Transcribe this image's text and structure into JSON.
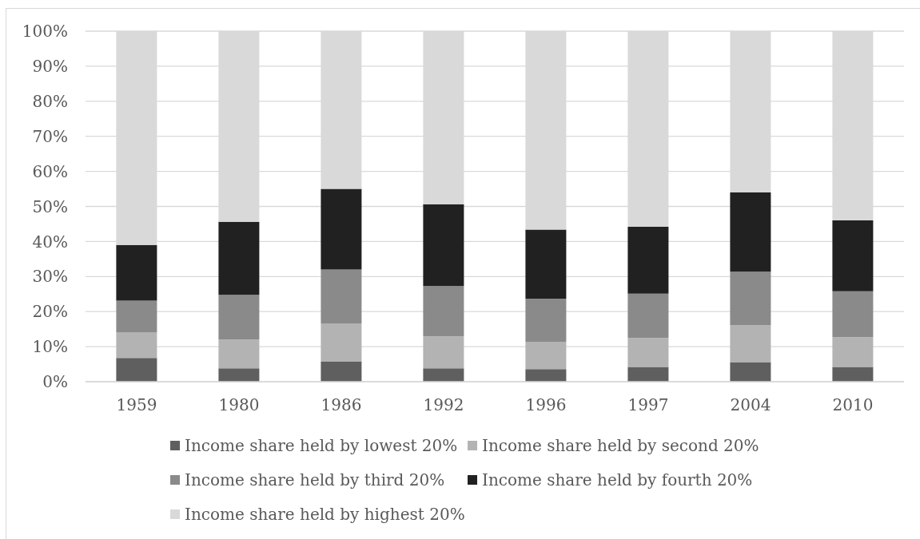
{
  "chart_data": {
    "type": "bar",
    "stacked": true,
    "categories": [
      "1959",
      "1980",
      "1986",
      "1992",
      "1996",
      "1997",
      "2004",
      "2010"
    ],
    "series": [
      {
        "name": "Income share held by lowest 20%",
        "color": "#5f5f5f",
        "values": [
          6.8,
          3.8,
          5.8,
          3.8,
          3.6,
          4.2,
          5.6,
          4.2
        ]
      },
      {
        "name": "Income share held by second 20%",
        "color": "#b3b3b3",
        "values": [
          7.2,
          8.2,
          10.7,
          9.1,
          7.8,
          8.3,
          10.6,
          8.5
        ]
      },
      {
        "name": "Income share held by third 20%",
        "color": "#8a8a8a",
        "values": [
          9.1,
          12.8,
          15.5,
          14.4,
          12.3,
          12.6,
          15.2,
          13.1
        ]
      },
      {
        "name": "Income share held by fourth 20%",
        "color": "#212121",
        "values": [
          15.9,
          20.8,
          23.0,
          23.3,
          19.7,
          19.1,
          22.6,
          20.2
        ]
      },
      {
        "name": "Income share held by highest 20%",
        "color": "#d9d9d9",
        "values": [
          61.0,
          54.4,
          45.0,
          49.4,
          56.6,
          55.8,
          46.0,
          54.0
        ]
      }
    ],
    "ylim": [
      0,
      100
    ],
    "yticks": [
      {
        "value": 0,
        "label": "0%"
      },
      {
        "value": 10,
        "label": "10%"
      },
      {
        "value": 20,
        "label": "20%"
      },
      {
        "value": 30,
        "label": "30%"
      },
      {
        "value": 40,
        "label": "40%"
      },
      {
        "value": 50,
        "label": "50%"
      },
      {
        "value": 60,
        "label": "60%"
      },
      {
        "value": 70,
        "label": "70%"
      },
      {
        "value": 80,
        "label": "80%"
      },
      {
        "value": 90,
        "label": "90%"
      },
      {
        "value": 100,
        "label": "100%"
      }
    ],
    "grid": "y",
    "legend": "bottom"
  }
}
